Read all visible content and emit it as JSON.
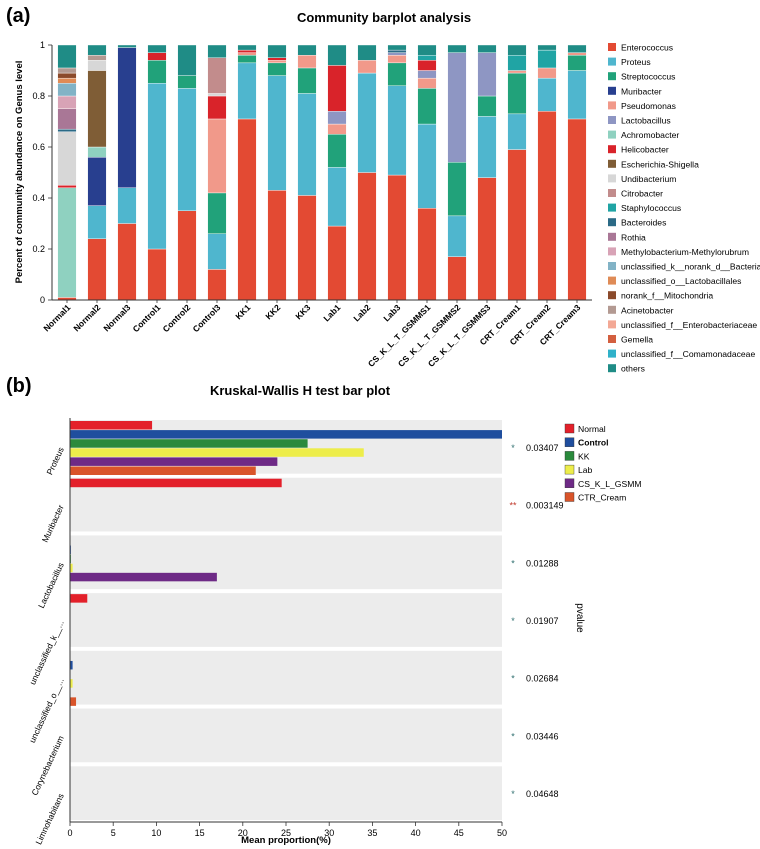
{
  "panel_a_label": "(a)",
  "panel_b_label": "(b)",
  "chart_data": [
    {
      "type": "bar",
      "stacked": true,
      "title": "Community barplot analysis",
      "ylabel": "Percent of community abundance on Genus level",
      "xlabel": "",
      "ylim": [
        0,
        1
      ],
      "yticks": [
        "0",
        "0.2",
        "0.4",
        "0.6",
        "0.8",
        "1"
      ],
      "legend_position": "right",
      "categories": [
        "Normal1",
        "Normal2",
        "Normal3",
        "Control1",
        "Control2",
        "Control3",
        "KK1",
        "KK2",
        "KK3",
        "Lab1",
        "Lab2",
        "Lab3",
        "CS_K_L_T_GSMMS1",
        "CS_K_L_T_GSMMS2",
        "CS_K_L_T_GSMMS3",
        "CRT_Cream1",
        "CRT_Cream2",
        "CRT_Cream3"
      ],
      "series": [
        {
          "name": "Enterococcus",
          "color": "#e34a33",
          "values": [
            0.01,
            0.24,
            0.3,
            0.2,
            0.35,
            0.12,
            0.71,
            0.43,
            0.41,
            0.29,
            0.5,
            0.49,
            0.36,
            0.17,
            0.48,
            0.59,
            0.74,
            0.71
          ]
        },
        {
          "name": "Proteus",
          "color": "#4fb6ce",
          "values": [
            0.0,
            0.13,
            0.14,
            0.65,
            0.48,
            0.14,
            0.22,
            0.45,
            0.4,
            0.23,
            0.39,
            0.35,
            0.33,
            0.16,
            0.24,
            0.14,
            0.13,
            0.19
          ]
        },
        {
          "name": "Streptococcus",
          "color": "#21a27a",
          "values": [
            0.0,
            0.0,
            0.0,
            0.09,
            0.05,
            0.16,
            0.03,
            0.05,
            0.1,
            0.13,
            0.0,
            0.09,
            0.14,
            0.21,
            0.08,
            0.16,
            0.0,
            0.06
          ]
        },
        {
          "name": "Muribacter",
          "color": "#283f8f",
          "values": [
            0.0,
            0.19,
            0.55,
            0.0,
            0.0,
            0.0,
            0.0,
            0.0,
            0.0,
            0.0,
            0.0,
            0.0,
            0.0,
            0.0,
            0.0,
            0.0,
            0.0,
            0.0
          ]
        },
        {
          "name": "Pseudomonas",
          "color": "#f1998a",
          "values": [
            0.0,
            0.0,
            0.0,
            0.0,
            0.0,
            0.29,
            0.01,
            0.01,
            0.05,
            0.04,
            0.05,
            0.03,
            0.04,
            0.0,
            0.0,
            0.01,
            0.04,
            0.01
          ]
        },
        {
          "name": "Lactobacillus",
          "color": "#8e96c3",
          "values": [
            0.0,
            0.0,
            0.0,
            0.0,
            0.0,
            0.0,
            0.0,
            0.0,
            0.0,
            0.05,
            0.0,
            0.01,
            0.03,
            0.43,
            0.17,
            0.0,
            0.0,
            0.0
          ]
        },
        {
          "name": "Achromobacter",
          "color": "#8fd1c0",
          "values": [
            0.43,
            0.04,
            0.0,
            0.0,
            0.0,
            0.0,
            0.0,
            0.0,
            0.0,
            0.0,
            0.0,
            0.0,
            0.0,
            0.0,
            0.0,
            0.0,
            0.0,
            0.0
          ]
        },
        {
          "name": "Helicobacter",
          "color": "#d9232a",
          "values": [
            0.01,
            0.0,
            0.0,
            0.03,
            0.0,
            0.09,
            0.01,
            0.01,
            0.0,
            0.18,
            0.0,
            0.0,
            0.04,
            0.0,
            0.0,
            0.0,
            0.0,
            0.0
          ]
        },
        {
          "name": "Escherichia-Shigella",
          "color": "#7f5d36",
          "values": [
            0.0,
            0.3,
            0.0,
            0.0,
            0.0,
            0.0,
            0.0,
            0.0,
            0.0,
            0.0,
            0.0,
            0.0,
            0.0,
            0.0,
            0.0,
            0.0,
            0.0,
            0.0
          ]
        },
        {
          "name": "Undibacterium",
          "color": "#d7d7d7",
          "values": [
            0.21,
            0.04,
            0.0,
            0.0,
            0.0,
            0.01,
            0.0,
            0.0,
            0.0,
            0.0,
            0.0,
            0.0,
            0.0,
            0.0,
            0.0,
            0.0,
            0.0,
            0.0
          ]
        },
        {
          "name": "Citrobacter",
          "color": "#c28c8c",
          "values": [
            0.0,
            0.0,
            0.0,
            0.0,
            0.0,
            0.14,
            0.0,
            0.0,
            0.0,
            0.0,
            0.0,
            0.0,
            0.0,
            0.0,
            0.0,
            0.0,
            0.0,
            0.0
          ]
        },
        {
          "name": "Staphylococcus",
          "color": "#20a4a4",
          "values": [
            0.0,
            0.0,
            0.0,
            0.0,
            0.0,
            0.0,
            0.0,
            0.0,
            0.0,
            0.0,
            0.0,
            0.0,
            0.02,
            0.0,
            0.0,
            0.06,
            0.07,
            0.0
          ]
        },
        {
          "name": "Bacteroides",
          "color": "#2b6a86",
          "values": [
            0.01,
            0.0,
            0.0,
            0.0,
            0.0,
            0.0,
            0.0,
            0.0,
            0.0,
            0.0,
            0.0,
            0.01,
            0.0,
            0.0,
            0.0,
            0.0,
            0.0,
            0.0
          ]
        },
        {
          "name": "Rothia",
          "color": "#a97796",
          "values": [
            0.08,
            0.0,
            0.0,
            0.0,
            0.0,
            0.0,
            0.0,
            0.0,
            0.0,
            0.0,
            0.0,
            0.0,
            0.0,
            0.0,
            0.0,
            0.0,
            0.0,
            0.0
          ]
        },
        {
          "name": "Methylobacterium-Methylorubrum",
          "color": "#d8a3b6",
          "values": [
            0.05,
            0.0,
            0.0,
            0.0,
            0.0,
            0.0,
            0.0,
            0.0,
            0.0,
            0.0,
            0.0,
            0.0,
            0.0,
            0.0,
            0.0,
            0.0,
            0.0,
            0.0
          ]
        },
        {
          "name": "unclassified_k__norank_d__Bacteria",
          "color": "#82b3c6",
          "values": [
            0.05,
            0.0,
            0.0,
            0.0,
            0.0,
            0.0,
            0.0,
            0.0,
            0.0,
            0.0,
            0.0,
            0.0,
            0.0,
            0.0,
            0.0,
            0.0,
            0.0,
            0.0
          ]
        },
        {
          "name": "unclassified_o__Lactobacillales",
          "color": "#df8b56",
          "values": [
            0.02,
            0.0,
            0.0,
            0.0,
            0.0,
            0.0,
            0.0,
            0.0,
            0.0,
            0.0,
            0.0,
            0.0,
            0.0,
            0.0,
            0.0,
            0.0,
            0.0,
            0.0
          ]
        },
        {
          "name": "norank_f__Mitochondria",
          "color": "#8b4a2b",
          "values": [
            0.02,
            0.0,
            0.0,
            0.0,
            0.0,
            0.0,
            0.0,
            0.0,
            0.0,
            0.0,
            0.0,
            0.0,
            0.0,
            0.0,
            0.0,
            0.0,
            0.0,
            0.0
          ]
        },
        {
          "name": "Acinetobacter",
          "color": "#b39a92",
          "values": [
            0.02,
            0.02,
            0.0,
            0.0,
            0.0,
            0.0,
            0.0,
            0.0,
            0.0,
            0.0,
            0.0,
            0.0,
            0.0,
            0.0,
            0.0,
            0.0,
            0.0,
            0.0
          ]
        },
        {
          "name": "unclassified_f__Enterobacteriaceae",
          "color": "#f3a895",
          "values": [
            0.0,
            0.0,
            0.0,
            0.0,
            0.0,
            0.0,
            0.0,
            0.0,
            0.0,
            0.0,
            0.0,
            0.0,
            0.0,
            0.0,
            0.0,
            0.0,
            0.0,
            0.0
          ]
        },
        {
          "name": "Gemella",
          "color": "#d35f3f",
          "values": [
            0.0,
            0.0,
            0.0,
            0.0,
            0.0,
            0.0,
            0.0,
            0.0,
            0.0,
            0.0,
            0.0,
            0.0,
            0.0,
            0.0,
            0.0,
            0.0,
            0.0,
            0.0
          ]
        },
        {
          "name": "unclassified_f__Comamonadaceae",
          "color": "#2fb1c9",
          "values": [
            0.0,
            0.0,
            0.0,
            0.0,
            0.0,
            0.0,
            0.0,
            0.0,
            0.0,
            0.0,
            0.0,
            0.0,
            0.0,
            0.0,
            0.0,
            0.0,
            0.0,
            0.0
          ]
        },
        {
          "name": "others",
          "color": "#1f8c86",
          "values": [
            0.09,
            0.04,
            0.01,
            0.03,
            0.12,
            0.05,
            0.02,
            0.05,
            0.04,
            0.08,
            0.06,
            0.02,
            0.04,
            0.03,
            0.03,
            0.04,
            0.02,
            0.03
          ]
        }
      ]
    },
    {
      "type": "bar",
      "orientation": "horizontal",
      "title": "Kruskal-Wallis H test bar plot",
      "xlabel": "Mean proportion(%)",
      "ylabel": "pvalue",
      "xlim": [
        0,
        50
      ],
      "xticks": [
        "0",
        "5",
        "10",
        "15",
        "20",
        "25",
        "30",
        "35",
        "40",
        "45",
        "50"
      ],
      "legend_position": "top-right",
      "categories": [
        "Proteus",
        "Muribacter",
        "Lactobacillus",
        "unclassified_k__...",
        "unclassified_o__...",
        "Corynebacterium",
        "Limnohabitans"
      ],
      "pvalues": [
        "0.03407",
        "0.003149",
        "0.01288",
        "0.01907",
        "0.02684",
        "0.03446",
        "0.04648"
      ],
      "significance": [
        "*",
        "**",
        "*",
        "*",
        "*",
        "*",
        "*"
      ],
      "series": [
        {
          "name": "Normal",
          "color": "#e3202a",
          "values": [
            9.5,
            24.5,
            0.0,
            2.0,
            0.0,
            0.0,
            0.0
          ]
        },
        {
          "name": "Control",
          "color": "#1f4e9e",
          "values": [
            50.0,
            0.0,
            0.1,
            0.0,
            0.3,
            0.0,
            0.0
          ]
        },
        {
          "name": "KK",
          "color": "#2a8a3c",
          "values": [
            27.5,
            0.0,
            0.1,
            0.0,
            0.0,
            0.0,
            0.0
          ]
        },
        {
          "name": "Lab",
          "color": "#eded4a",
          "values": [
            34.0,
            0.0,
            0.3,
            0.0,
            0.3,
            0.0,
            0.0
          ]
        },
        {
          "name": "CS_K_L_GSMM",
          "color": "#6e2a86",
          "values": [
            24.0,
            0.0,
            17.0,
            0.0,
            0.0,
            0.0,
            0.0
          ]
        },
        {
          "name": "CTR_Cream",
          "color": "#d9542a",
          "values": [
            21.5,
            0.0,
            0.0,
            0.0,
            0.7,
            0.0,
            0.0
          ]
        }
      ]
    }
  ]
}
